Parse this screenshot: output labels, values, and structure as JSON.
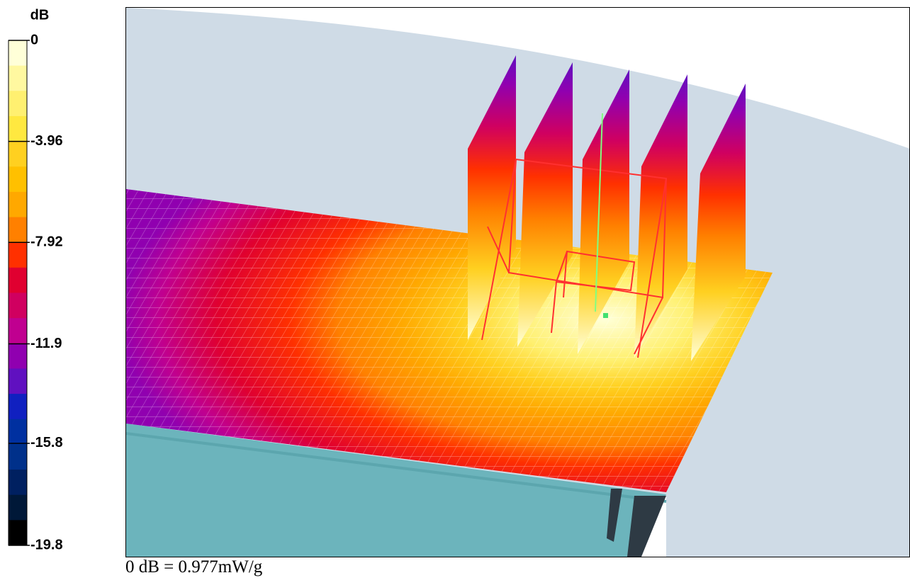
{
  "chart_data": {
    "type": "colorbar",
    "unit_label": "dB",
    "ylim": [
      -19.8,
      0
    ],
    "yticks": [
      0,
      -3.96,
      -7.92,
      -11.9,
      -15.8,
      -19.8
    ],
    "colors": [
      "#ffffd8",
      "#fff8a0",
      "#fff070",
      "#ffe840",
      "#ffd020",
      "#ffc000",
      "#ffa800",
      "#ff8000",
      "#ff3000",
      "#e00030",
      "#d00060",
      "#c00090",
      "#9000b0",
      "#6010c0",
      "#1020c0",
      "#0030a0",
      "#00308a",
      "#002060",
      "#001838",
      "#000000"
    ],
    "caption": "0 dB = 0.977mW/g"
  }
}
